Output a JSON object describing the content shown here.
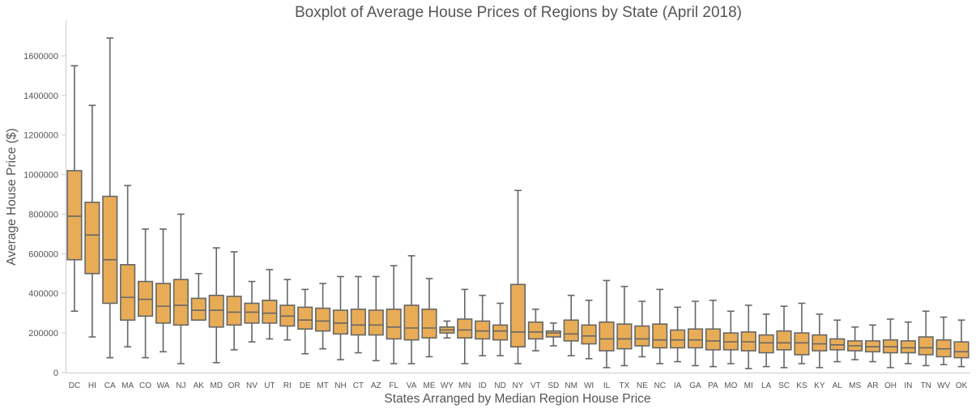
{
  "chart_data": {
    "type": "boxplot",
    "title": "Boxplot of Average House Prices of Regions by State (April 2018)",
    "xlabel": "States Arranged by Median Region House Price",
    "ylabel": "Average House Price ($)",
    "ylim": [
      0,
      1780000
    ],
    "yticks": [
      0,
      200000,
      400000,
      600000,
      800000,
      1000000,
      1200000,
      1400000,
      1600000
    ],
    "box_color": "#e8ac56",
    "line_color": "#666666",
    "states": [
      {
        "name": "DC",
        "whisker_low": 310000,
        "q1": 570000,
        "median": 790000,
        "q3": 1020000,
        "whisker_high": 1550000
      },
      {
        "name": "HI",
        "whisker_low": 180000,
        "q1": 500000,
        "median": 695000,
        "q3": 860000,
        "whisker_high": 1350000
      },
      {
        "name": "CA",
        "whisker_low": 75000,
        "q1": 350000,
        "median": 570000,
        "q3": 890000,
        "whisker_high": 1690000
      },
      {
        "name": "MA",
        "whisker_low": 130000,
        "q1": 265000,
        "median": 380000,
        "q3": 545000,
        "whisker_high": 945000
      },
      {
        "name": "CO",
        "whisker_low": 75000,
        "q1": 285000,
        "median": 370000,
        "q3": 460000,
        "whisker_high": 725000
      },
      {
        "name": "WA",
        "whisker_low": 105000,
        "q1": 250000,
        "median": 335000,
        "q3": 450000,
        "whisker_high": 725000
      },
      {
        "name": "NJ",
        "whisker_low": 45000,
        "q1": 240000,
        "median": 340000,
        "q3": 470000,
        "whisker_high": 800000
      },
      {
        "name": "AK",
        "whisker_low": 265000,
        "q1": 265000,
        "median": 315000,
        "q3": 375000,
        "whisker_high": 500000
      },
      {
        "name": "MD",
        "whisker_low": 50000,
        "q1": 230000,
        "median": 315000,
        "q3": 390000,
        "whisker_high": 630000
      },
      {
        "name": "OR",
        "whisker_low": 115000,
        "q1": 240000,
        "median": 305000,
        "q3": 385000,
        "whisker_high": 610000
      },
      {
        "name": "NV",
        "whisker_low": 155000,
        "q1": 250000,
        "median": 305000,
        "q3": 350000,
        "whisker_high": 460000
      },
      {
        "name": "UT",
        "whisker_low": 170000,
        "q1": 250000,
        "median": 300000,
        "q3": 365000,
        "whisker_high": 520000
      },
      {
        "name": "RI",
        "whisker_low": 165000,
        "q1": 235000,
        "median": 285000,
        "q3": 340000,
        "whisker_high": 470000
      },
      {
        "name": "DE",
        "whisker_low": 95000,
        "q1": 220000,
        "median": 265000,
        "q3": 330000,
        "whisker_high": 420000
      },
      {
        "name": "MT",
        "whisker_low": 120000,
        "q1": 210000,
        "median": 260000,
        "q3": 325000,
        "whisker_high": 450000
      },
      {
        "name": "NH",
        "whisker_low": 65000,
        "q1": 195000,
        "median": 250000,
        "q3": 315000,
        "whisker_high": 485000
      },
      {
        "name": "CT",
        "whisker_low": 100000,
        "q1": 190000,
        "median": 240000,
        "q3": 320000,
        "whisker_high": 485000
      },
      {
        "name": "AZ",
        "whisker_low": 60000,
        "q1": 190000,
        "median": 240000,
        "q3": 315000,
        "whisker_high": 485000
      },
      {
        "name": "FL",
        "whisker_low": 45000,
        "q1": 170000,
        "median": 230000,
        "q3": 320000,
        "whisker_high": 540000
      },
      {
        "name": "VA",
        "whisker_low": 45000,
        "q1": 165000,
        "median": 225000,
        "q3": 340000,
        "whisker_high": 590000
      },
      {
        "name": "ME",
        "whisker_low": 80000,
        "q1": 175000,
        "median": 225000,
        "q3": 320000,
        "whisker_high": 475000
      },
      {
        "name": "WY",
        "whisker_low": 175000,
        "q1": 200000,
        "median": 215000,
        "q3": 230000,
        "whisker_high": 260000
      },
      {
        "name": "MN",
        "whisker_low": 45000,
        "q1": 175000,
        "median": 215000,
        "q3": 270000,
        "whisker_high": 420000
      },
      {
        "name": "ID",
        "whisker_low": 85000,
        "q1": 170000,
        "median": 210000,
        "q3": 260000,
        "whisker_high": 390000
      },
      {
        "name": "ND",
        "whisker_low": 85000,
        "q1": 165000,
        "median": 210000,
        "q3": 240000,
        "whisker_high": 350000
      },
      {
        "name": "NY",
        "whisker_low": 45000,
        "q1": 130000,
        "median": 205000,
        "q3": 445000,
        "whisker_high": 920000
      },
      {
        "name": "VT",
        "whisker_low": 110000,
        "q1": 170000,
        "median": 205000,
        "q3": 255000,
        "whisker_high": 320000
      },
      {
        "name": "SD",
        "whisker_low": 135000,
        "q1": 180000,
        "median": 200000,
        "q3": 210000,
        "whisker_high": 250000
      },
      {
        "name": "NM",
        "whisker_low": 85000,
        "q1": 160000,
        "median": 195000,
        "q3": 265000,
        "whisker_high": 390000
      },
      {
        "name": "WI",
        "whisker_low": 70000,
        "q1": 145000,
        "median": 185000,
        "q3": 240000,
        "whisker_high": 365000
      },
      {
        "name": "IL",
        "whisker_low": 25000,
        "q1": 110000,
        "median": 170000,
        "q3": 255000,
        "whisker_high": 465000
      },
      {
        "name": "TX",
        "whisker_low": 35000,
        "q1": 120000,
        "median": 170000,
        "q3": 245000,
        "whisker_high": 435000
      },
      {
        "name": "NE",
        "whisker_low": 80000,
        "q1": 135000,
        "median": 170000,
        "q3": 235000,
        "whisker_high": 360000
      },
      {
        "name": "NC",
        "whisker_low": 45000,
        "q1": 125000,
        "median": 165000,
        "q3": 245000,
        "whisker_high": 420000
      },
      {
        "name": "IA",
        "whisker_low": 55000,
        "q1": 125000,
        "median": 165000,
        "q3": 215000,
        "whisker_high": 330000
      },
      {
        "name": "GA",
        "whisker_low": 35000,
        "q1": 125000,
        "median": 165000,
        "q3": 220000,
        "whisker_high": 360000
      },
      {
        "name": "PA",
        "whisker_low": 30000,
        "q1": 115000,
        "median": 160000,
        "q3": 220000,
        "whisker_high": 365000
      },
      {
        "name": "MO",
        "whisker_low": 45000,
        "q1": 115000,
        "median": 155000,
        "q3": 200000,
        "whisker_high": 310000
      },
      {
        "name": "MI",
        "whisker_low": 20000,
        "q1": 110000,
        "median": 155000,
        "q3": 205000,
        "whisker_high": 340000
      },
      {
        "name": "LA",
        "whisker_low": 30000,
        "q1": 100000,
        "median": 150000,
        "q3": 190000,
        "whisker_high": 295000
      },
      {
        "name": "SC",
        "whisker_low": 25000,
        "q1": 115000,
        "median": 150000,
        "q3": 210000,
        "whisker_high": 335000
      },
      {
        "name": "KS",
        "whisker_low": 45000,
        "q1": 90000,
        "median": 150000,
        "q3": 200000,
        "whisker_high": 350000
      },
      {
        "name": "KY",
        "whisker_low": 25000,
        "q1": 110000,
        "median": 145000,
        "q3": 190000,
        "whisker_high": 295000
      },
      {
        "name": "AL",
        "whisker_low": 55000,
        "q1": 115000,
        "median": 140000,
        "q3": 170000,
        "whisker_high": 265000
      },
      {
        "name": "MS",
        "whisker_low": 65000,
        "q1": 110000,
        "median": 135000,
        "q3": 160000,
        "whisker_high": 230000
      },
      {
        "name": "AR",
        "whisker_low": 55000,
        "q1": 105000,
        "median": 130000,
        "q3": 160000,
        "whisker_high": 240000
      },
      {
        "name": "OH",
        "whisker_low": 25000,
        "q1": 100000,
        "median": 130000,
        "q3": 165000,
        "whisker_high": 270000
      },
      {
        "name": "IN",
        "whisker_low": 45000,
        "q1": 100000,
        "median": 125000,
        "q3": 160000,
        "whisker_high": 255000
      },
      {
        "name": "TN",
        "whisker_low": 35000,
        "q1": 90000,
        "median": 125000,
        "q3": 180000,
        "whisker_high": 310000
      },
      {
        "name": "WV",
        "whisker_low": 40000,
        "q1": 80000,
        "median": 120000,
        "q3": 165000,
        "whisker_high": 280000
      },
      {
        "name": "OK",
        "whisker_low": 30000,
        "q1": 75000,
        "median": 105000,
        "q3": 155000,
        "whisker_high": 265000
      }
    ]
  }
}
